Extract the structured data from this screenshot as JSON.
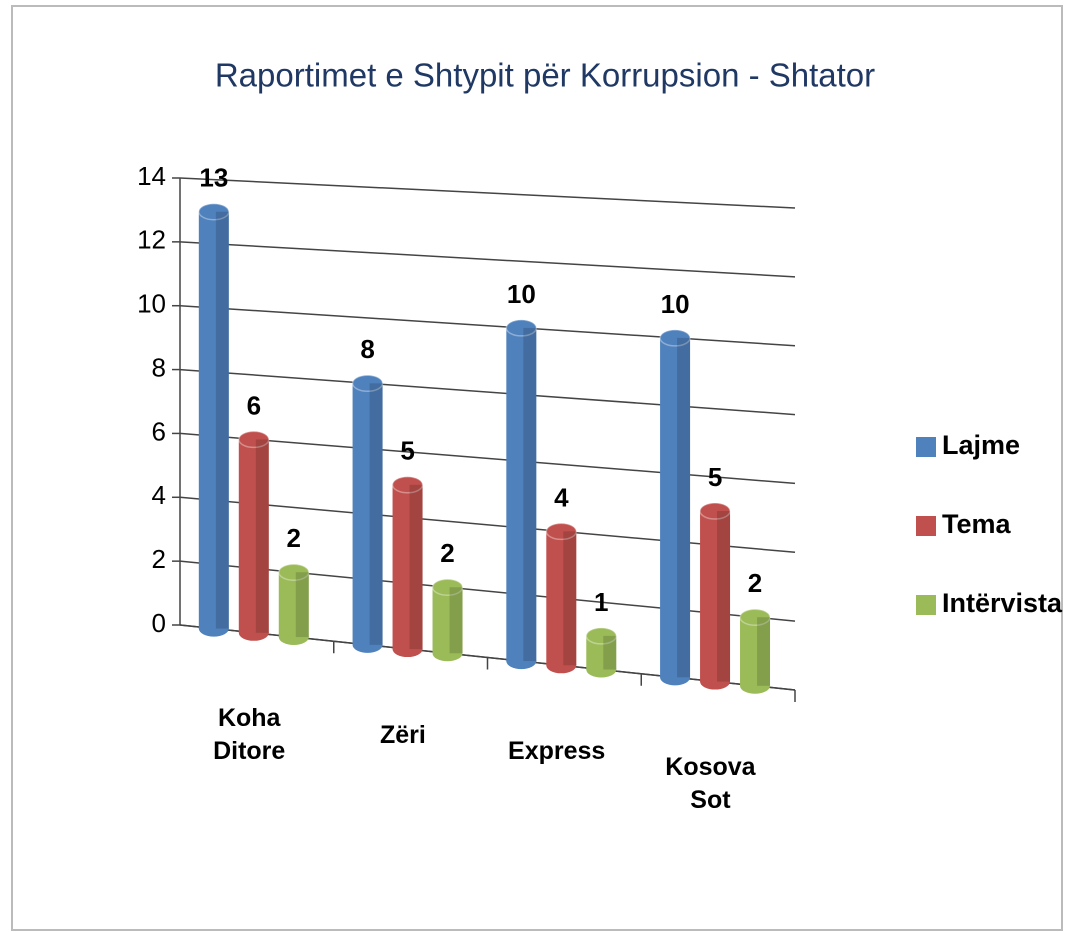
{
  "chart_data": {
    "type": "bar",
    "title": "Raportimet e Shtypit për Korrupsion - Shtator",
    "categories": [
      "Koha Ditore",
      "Zëri",
      "Express",
      "Kosova Sot"
    ],
    "series": [
      {
        "name": "Lajme",
        "color": "#4f81bd",
        "values": [
          13,
          8,
          10,
          10
        ]
      },
      {
        "name": "Tema",
        "color": "#c0504d",
        "values": [
          6,
          5,
          4,
          5
        ]
      },
      {
        "name": "Intërvista",
        "color": "#9bbb59",
        "values": [
          2,
          2,
          1,
          2
        ]
      }
    ],
    "ylim": [
      0,
      14
    ],
    "yticks": [
      0,
      2,
      4,
      6,
      8,
      10,
      12,
      14
    ],
    "grid": true,
    "legend": "right"
  }
}
